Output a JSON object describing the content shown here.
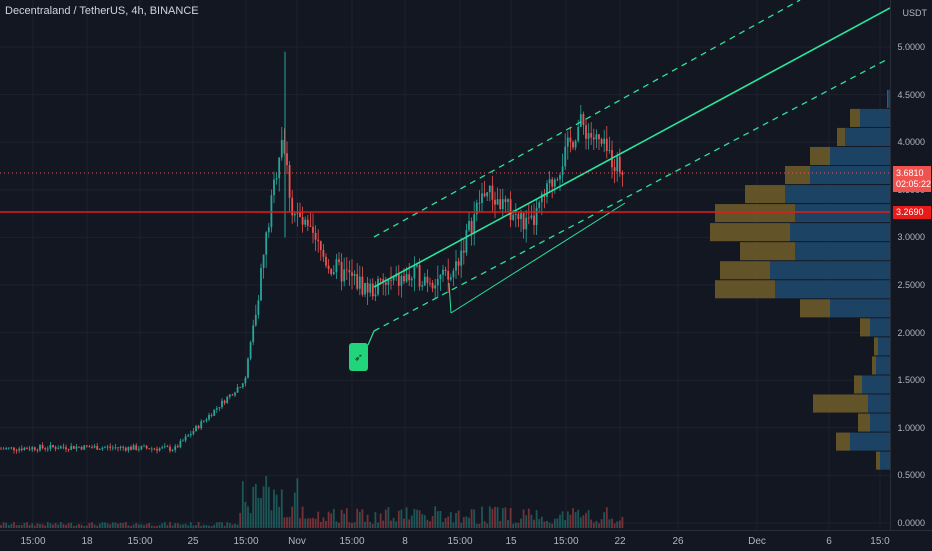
{
  "symbol": {
    "title": "Decentraland / TetherUS, 4h, BINANCE"
  },
  "price_axis": {
    "currency": "USDT",
    "ticks": [
      "5.0000",
      "4.5000",
      "4.0000",
      "3.5000",
      "3.0000",
      "2.5000",
      "2.0000",
      "1.5000",
      "1.0000",
      "0.5000",
      "0.0000"
    ],
    "current_price": "3.6810",
    "countdown": "02:05:22",
    "level_price": "3.2690"
  },
  "time_axis": {
    "ticks": [
      "15:00",
      "18",
      "15:00",
      "25",
      "15:00",
      "Nov",
      "15:00",
      "8",
      "15:00",
      "15",
      "15:00",
      "22",
      "26",
      "Dec",
      "6",
      "15:0"
    ]
  },
  "colors": {
    "background": "#131722",
    "bull": "#26a69a",
    "bear": "#ef5350",
    "channel": "#2be39a",
    "level_line": "#e81a1a",
    "volume_profile_up": "#1e4a70",
    "volume_profile_down": "#6d5a2a"
  },
  "drawings": {
    "rocket_icon": "rocket-icon"
  },
  "chart_data": {
    "type": "candlestick",
    "ylim": [
      0,
      5.4
    ],
    "current_price": 3.681,
    "horizontal_level": 3.269,
    "series": [
      {
        "x": "Oct 14",
        "y": 0.78
      },
      {
        "x": "Oct 20",
        "y": 0.8
      },
      {
        "x": "Oct 26",
        "y": 0.78
      },
      {
        "x": "Oct 28",
        "y": 1.5
      },
      {
        "x": "Oct 29",
        "y": 4.1
      },
      {
        "x": "Oct 30",
        "y": 3.3
      },
      {
        "x": "Nov 2",
        "y": 2.7
      },
      {
        "x": "Nov 5",
        "y": 2.45
      },
      {
        "x": "Nov 9",
        "y": 2.6
      },
      {
        "x": "Nov 11",
        "y": 2.55
      },
      {
        "x": "Nov 13",
        "y": 3.5
      },
      {
        "x": "Nov 16",
        "y": 3.1
      },
      {
        "x": "Nov 19",
        "y": 4.2
      },
      {
        "x": "Nov 22",
        "y": 3.68
      }
    ]
  }
}
